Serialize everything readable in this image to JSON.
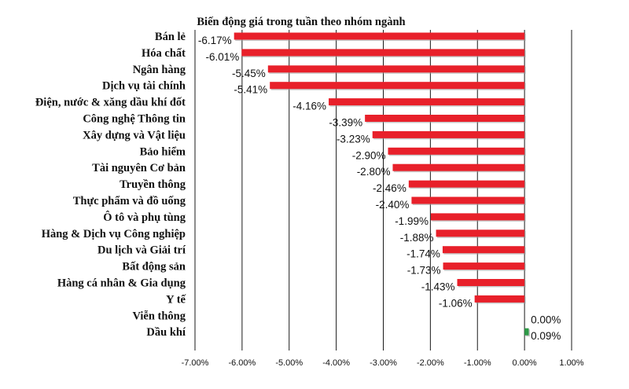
{
  "chart_data": {
    "type": "bar",
    "orientation": "horizontal",
    "title": "Biến động giá trong tuần theo nhóm ngành",
    "categories": [
      "Bán lẻ",
      "Hóa chất",
      "Ngân hàng",
      "Dịch vụ tài chính",
      "Điện, nước & xăng dầu khí đốt",
      "Công nghệ Thông tin",
      "Xây dựng và Vật liệu",
      "Bảo hiểm",
      "Tài nguyên Cơ bản",
      "Truyền thông",
      "Thực phẩm và đồ uống",
      "Ô tô và phụ tùng",
      "Hàng & Dịch vụ Công nghiệp",
      "Du lịch và Giải trí",
      "Bất động sản",
      "Hàng cá nhân & Gia dụng",
      "Y tế",
      "Viễn thông",
      "Dầu khí"
    ],
    "values": [
      -6.17,
      -6.01,
      -5.45,
      -5.41,
      -4.16,
      -3.39,
      -3.23,
      -2.9,
      -2.8,
      -2.46,
      -2.4,
      -1.99,
      -1.88,
      -1.74,
      -1.73,
      -1.43,
      -1.06,
      0.0,
      0.09
    ],
    "value_labels": [
      "-6.17%",
      "-6.01%",
      "-5.45%",
      "-5.41%",
      "-4.16%",
      "-3.39%",
      "-3.23%",
      "-2.90%",
      "-2.80%",
      "-2.46%",
      "-2.40%",
      "-1.99%",
      "-1.88%",
      "-1.74%",
      "-1.73%",
      "-1.43%",
      "-1.06%",
      "0.00%",
      "0.09%"
    ],
    "xlim": [
      -7,
      1
    ],
    "x_ticks": [
      -7,
      -6,
      -5,
      -4,
      -3,
      -2,
      -1,
      0,
      1
    ],
    "x_tick_labels": [
      "-7.00%",
      "-6.00%",
      "-5.00%",
      "-4.00%",
      "-3.00%",
      "-2.00%",
      "-1.00%",
      "0.00%",
      "1.00%"
    ],
    "xlabel": "",
    "ylabel": "",
    "grid": "vertical",
    "legend": "none",
    "colors": {
      "negative": "#e8202a",
      "positive": "#2e9a47",
      "grid": "#1a1a1a",
      "shadow": "#9a9a9a"
    }
  }
}
